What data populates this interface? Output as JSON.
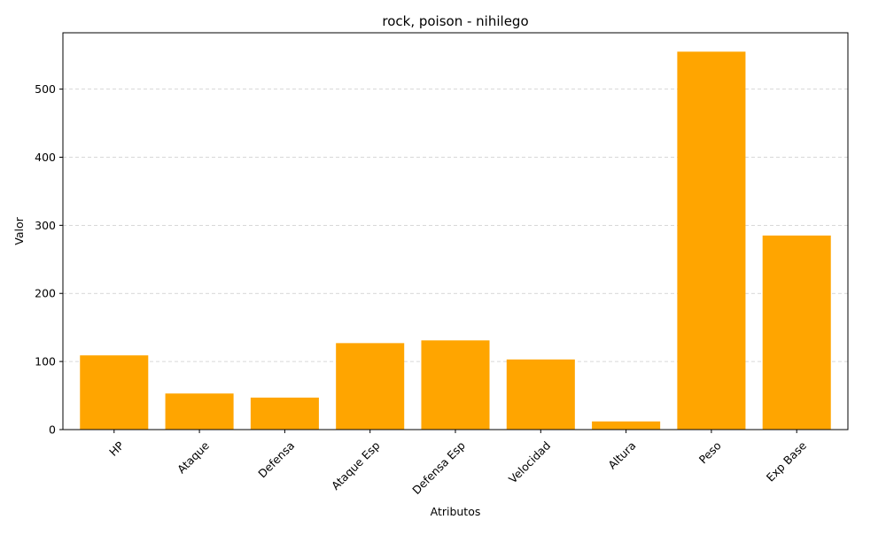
{
  "chart_data": {
    "type": "bar",
    "title": "rock, poison - nihilego",
    "xlabel": "Atributos",
    "ylabel": "Valor",
    "categories": [
      "HP",
      "Ataque",
      "Defensa",
      "Ataque Esp",
      "Defensa Esp",
      "Velocidad",
      "Altura",
      "Peso",
      "Exp Base"
    ],
    "values": [
      109,
      53,
      47,
      127,
      131,
      103,
      12,
      555,
      285
    ],
    "ylim": [
      0,
      582.75
    ],
    "yticks": [
      0,
      100,
      200,
      300,
      400,
      500
    ],
    "bar_color": "#ffa500",
    "grid": {
      "axis": "y",
      "style": "dashed",
      "color": "#cccccc"
    },
    "xtick_rotation": 45,
    "legend": "none"
  }
}
